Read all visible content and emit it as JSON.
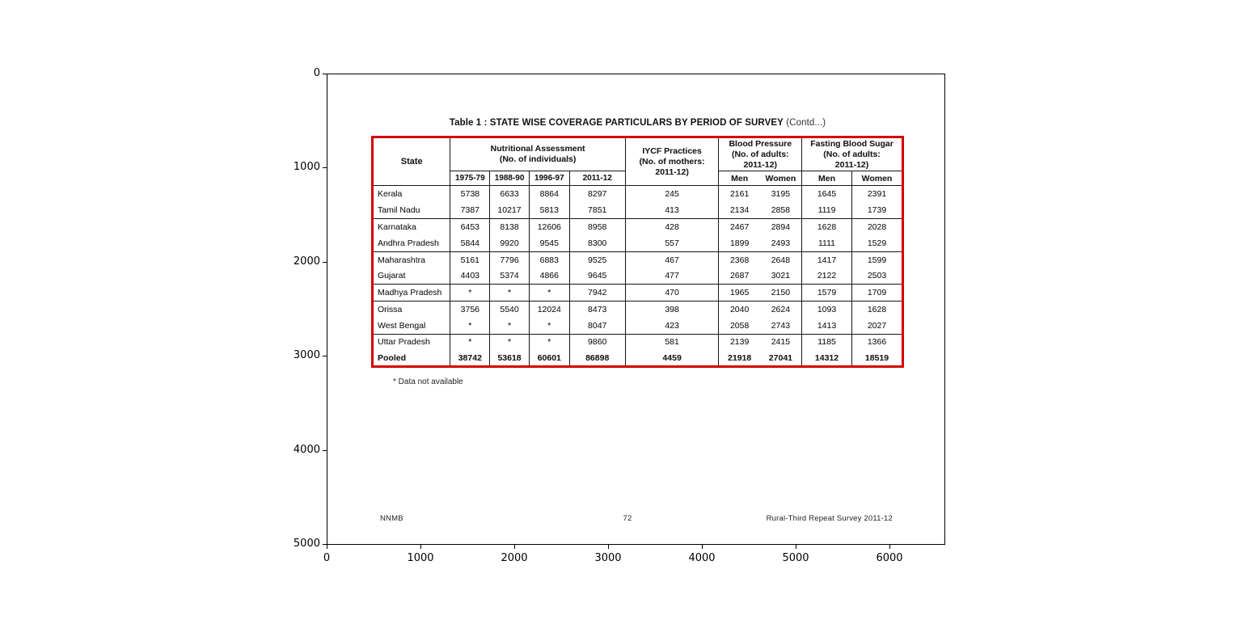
{
  "axes": {
    "x_ticks": [
      "0",
      "1000",
      "2000",
      "3000",
      "4000",
      "5000",
      "6000"
    ],
    "y_ticks": [
      "0",
      "1000",
      "2000",
      "3000",
      "4000",
      "5000"
    ]
  },
  "page": {
    "title_main": "Table 1 : STATE WISE COVERAGE PARTICULARS BY PERIOD OF SURVEY",
    "title_contd": "(Contd...)",
    "note": "* Data not available",
    "footer_left": "NNMB",
    "footer_center": "72",
    "footer_right": "Rural-Third Repeat Survey 2011-12"
  },
  "table": {
    "border_color": "#d40000",
    "headers": {
      "state": "State",
      "nutritional": [
        "Nutritional Assessment",
        "(No. of individuals)"
      ],
      "years": [
        "1975-79",
        "1988-90",
        "1996-97",
        "2011-12"
      ],
      "iycf": [
        "IYCF Practices",
        "(No. of mothers:",
        "2011-12)"
      ],
      "bp": [
        "Blood Pressure",
        "(No. of adults:",
        "2011-12)"
      ],
      "fbs": [
        "Fasting  Blood Sugar",
        "(No. of adults:",
        "2011-12)"
      ],
      "men": "Men",
      "women": "Women"
    },
    "rows": [
      {
        "state": "Kerala",
        "na": [
          "5738",
          "6633",
          "8864",
          "8297"
        ],
        "iycf": "245",
        "bp": [
          "2161",
          "3195"
        ],
        "fbs": [
          "1645",
          "2391"
        ],
        "group_end": false,
        "bold": false
      },
      {
        "state": "Tamil Nadu",
        "na": [
          "7387",
          "10217",
          "5813",
          "7851"
        ],
        "iycf": "413",
        "bp": [
          "2134",
          "2858"
        ],
        "fbs": [
          "1119",
          "1739"
        ],
        "group_end": true,
        "bold": false
      },
      {
        "state": "Karnataka",
        "na": [
          "6453",
          "8138",
          "12606",
          "8958"
        ],
        "iycf": "428",
        "bp": [
          "2467",
          "2894"
        ],
        "fbs": [
          "1628",
          "2028"
        ],
        "group_end": false,
        "bold": false
      },
      {
        "state": "Andhra Pradesh",
        "na": [
          "5844",
          "9920",
          "9545",
          "8300"
        ],
        "iycf": "557",
        "bp": [
          "1899",
          "2493"
        ],
        "fbs": [
          "1111",
          "1529"
        ],
        "group_end": true,
        "bold": false
      },
      {
        "state": "Maharashtra",
        "na": [
          "5161",
          "7796",
          "6883",
          "9525"
        ],
        "iycf": "467",
        "bp": [
          "2368",
          "2648"
        ],
        "fbs": [
          "1417",
          "1599"
        ],
        "group_end": false,
        "bold": false
      },
      {
        "state": "Gujarat",
        "na": [
          "4403",
          "5374",
          "4866",
          "9645"
        ],
        "iycf": "477",
        "bp": [
          "2687",
          "3021"
        ],
        "fbs": [
          "2122",
          "2503"
        ],
        "group_end": true,
        "bold": false
      },
      {
        "state": "Madhya Pradesh",
        "na": [
          "*",
          "*",
          "*",
          "7942"
        ],
        "iycf": "470",
        "bp": [
          "1965",
          "2150"
        ],
        "fbs": [
          "1579",
          "1709"
        ],
        "group_end": true,
        "bold": false
      },
      {
        "state": "Orissa",
        "na": [
          "3756",
          "5540",
          "12024",
          "8473"
        ],
        "iycf": "398",
        "bp": [
          "2040",
          "2624"
        ],
        "fbs": [
          "1093",
          "1628"
        ],
        "group_end": false,
        "bold": false
      },
      {
        "state": "West Bengal",
        "na": [
          "*",
          "*",
          "*",
          "8047"
        ],
        "iycf": "423",
        "bp": [
          "2058",
          "2743"
        ],
        "fbs": [
          "1413",
          "2027"
        ],
        "group_end": true,
        "bold": false
      },
      {
        "state": "Uttar Pradesh",
        "na": [
          "*",
          "*",
          "*",
          "9860"
        ],
        "iycf": "581",
        "bp": [
          "2139",
          "2415"
        ],
        "fbs": [
          "1185",
          "1366"
        ],
        "group_end": false,
        "bold": false
      },
      {
        "state": "Pooled",
        "na": [
          "38742",
          "53618",
          "60601",
          "86898"
        ],
        "iycf": "4459",
        "bp": [
          "21918",
          "27041"
        ],
        "fbs": [
          "14312",
          "18519"
        ],
        "group_end": false,
        "bold": true
      }
    ]
  }
}
